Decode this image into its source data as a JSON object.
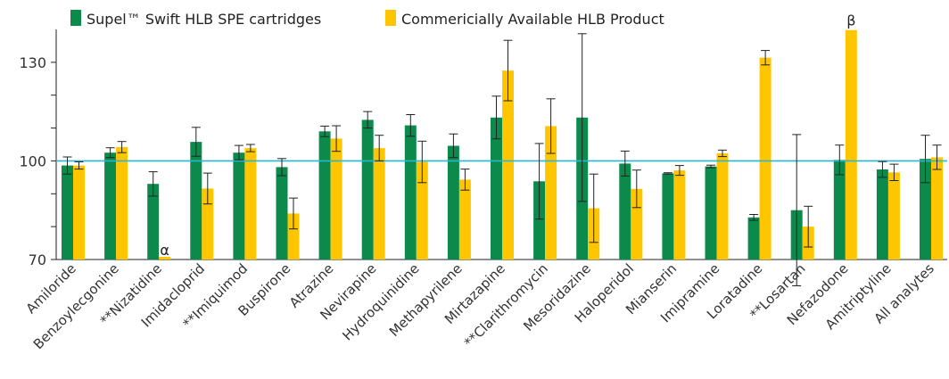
{
  "chart_data": {
    "type": "bar",
    "categories": [
      "Amiloride",
      "Benzoylecgonine",
      "**Nizatidine",
      "Imidacloprid",
      "**Imiquimod",
      "Buspirone",
      "Atrazine",
      "Nevirapine",
      "Hydroquinidine",
      "Methapyrilene",
      "Mirtazapine",
      "**Clarithromycin",
      "Mesoridazine",
      "Haloperidol",
      "Mianserin",
      "Imipramine",
      "Loratadine",
      "**Losartan",
      "Nefazodone",
      "Amitriptyline",
      "All analytes"
    ],
    "series": [
      {
        "name": "Supel™ Swift HLB SPE cartridges",
        "color": "#0b8a4b",
        "values": [
          98.6,
          102.5,
          93,
          105.8,
          102.5,
          98.1,
          109,
          112.5,
          110.8,
          104.6,
          113.2,
          93.8,
          113.2,
          99.2,
          96.2,
          98.3,
          82.8,
          85,
          100.3,
          97.4,
          100.6
        ],
        "errors": [
          2.6,
          1.5,
          3.7,
          4.4,
          2.2,
          2.6,
          1.6,
          2.5,
          3.3,
          3.6,
          6.5,
          11.5,
          25.5,
          3.8,
          0.2,
          0.4,
          0.9,
          23,
          4.5,
          2.4,
          7.2
        ]
      },
      {
        "name": "Commericially Available HLB Product",
        "color": "#ffc600",
        "values": [
          98.6,
          104.2,
          70,
          91.6,
          103.9,
          84,
          106.8,
          103.9,
          99.7,
          94.3,
          127.5,
          110.6,
          85.6,
          91.5,
          97.1,
          102.3,
          131.4,
          80,
          139.8,
          96.5,
          101.1
        ],
        "errors": [
          1.1,
          1.7,
          0,
          4.7,
          1.1,
          4.7,
          3.9,
          3.9,
          6.3,
          3.2,
          9.2,
          8.3,
          10.4,
          5.7,
          1.5,
          1,
          2.2,
          6.2,
          0,
          2.5,
          3.7
        ]
      }
    ],
    "reference_line": {
      "value": 100,
      "color": "#29b8cf"
    },
    "yticks": [
      "70",
      "100",
      "130"
    ],
    "ylim": [
      70,
      140
    ],
    "annotations": [
      {
        "category": "**Nizatidine",
        "series": 1,
        "text": "α"
      },
      {
        "category": "Nefazodone",
        "series": 1,
        "text": "β"
      }
    ],
    "legend": "top-left",
    "grid": false
  }
}
